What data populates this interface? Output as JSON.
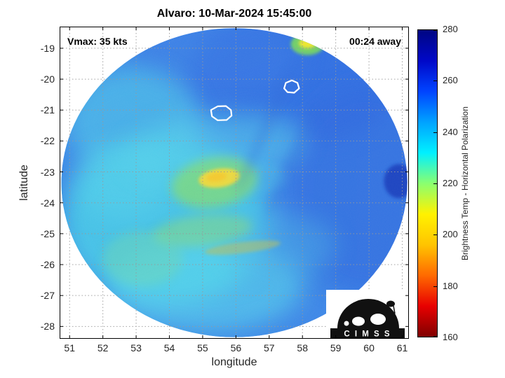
{
  "title": "Alvaro: 10-Mar-2024 15:45:00",
  "annotations": {
    "vmax": "Vmax: 35 kts",
    "time_away": "00:24 away"
  },
  "logo": {
    "text": "C I M S S"
  },
  "chart_data": {
    "type": "heatmap",
    "title": "Alvaro: 10-Mar-2024 15:45:00",
    "storm_name": "Alvaro",
    "valid_time": "10-Mar-2024 15:45:00",
    "vmax_kts": 35,
    "time_away_hhmm": "00:24",
    "xlabel": "longitude",
    "ylabel": "latitude",
    "xlim": [
      50.7,
      61.2
    ],
    "ylim": [
      -28.4,
      -18.3
    ],
    "xticks": [
      51,
      52,
      53,
      54,
      55,
      56,
      57,
      58,
      59,
      60,
      61
    ],
    "yticks": [
      -19,
      -20,
      -21,
      -22,
      -23,
      -24,
      -25,
      -26,
      -27,
      -28
    ],
    "grid": true,
    "colorbar": {
      "label": "Brightness Temp - Horizontal Polarization",
      "range": [
        160,
        280
      ],
      "ticks": [
        160,
        180,
        200,
        220,
        240,
        260,
        280
      ],
      "colors_bottom_to_top": [
        "#7f0000",
        "#e80000",
        "#ff6a00",
        "#ffc400",
        "#fff200",
        "#8aff70",
        "#00f0ff",
        "#00a2ff",
        "#0044ff",
        "#0008c8",
        "#000682"
      ]
    },
    "swath": {
      "center_lon": 55.95,
      "center_lat": -23.35,
      "rx_deg": 5.2,
      "ry_deg": 5.0,
      "base_color": "#3c86e6",
      "base_value_k": 252
    },
    "features": [
      {
        "lon": 57.8,
        "lat": -19.9,
        "rx": 3.2,
        "ry": 2.2,
        "rot": 0,
        "color": "#2e6ae0",
        "opacity": 0.8,
        "blur": "lg"
      },
      {
        "lon": 59.9,
        "lat": -23.6,
        "rx": 2.4,
        "ry": 3.4,
        "rot": 0,
        "color": "#2d68de",
        "opacity": 0.65,
        "blur": "lg"
      },
      {
        "lon": 55.4,
        "lat": -19.3,
        "rx": 2.6,
        "ry": 1.4,
        "rot": 0,
        "color": "#3a7ce4",
        "opacity": 0.5,
        "blur": "lg"
      },
      {
        "lon": 53.9,
        "lat": -24.6,
        "rx": 3.1,
        "ry": 2.7,
        "rot": 0,
        "color": "#47cce6",
        "opacity": 0.85,
        "blur": "lg"
      },
      {
        "lon": 52.9,
        "lat": -21.4,
        "rx": 2.0,
        "ry": 1.8,
        "rot": 0,
        "color": "#50cae8",
        "opacity": 0.6,
        "blur": "lg"
      },
      {
        "lon": 52.6,
        "lat": -23.3,
        "rx": 1.5,
        "ry": 1.2,
        "rot": 0,
        "color": "#54d2ea",
        "opacity": 0.5,
        "blur": "lg"
      },
      {
        "lon": 55.4,
        "lat": -22.2,
        "rx": 2.7,
        "ry": 1.1,
        "rot": -6,
        "color": "#56d0ea",
        "opacity": 0.5,
        "blur": "lg"
      },
      {
        "lon": 55.1,
        "lat": -26.7,
        "rx": 2.9,
        "ry": 1.5,
        "rot": 0,
        "color": "#59d6ec",
        "opacity": 0.6,
        "blur": "lg"
      },
      {
        "lon": 57.3,
        "lat": -25.4,
        "rx": 1.7,
        "ry": 1.1,
        "rot": 0,
        "color": "#49b0e4",
        "opacity": 0.45,
        "blur": "lg"
      },
      {
        "lon": 56.6,
        "lat": -23.2,
        "rx": 0.9,
        "ry": 0.55,
        "rot": 0,
        "color": "#4cc0e6",
        "opacity": 0.45,
        "blur": "md"
      },
      {
        "lon": 55.35,
        "lat": -23.35,
        "rx": 1.3,
        "ry": 0.8,
        "rot": -10,
        "color": "#84dc6c",
        "opacity": 0.7,
        "blur": "md"
      },
      {
        "lon": 55.5,
        "lat": -23.2,
        "rx": 0.62,
        "ry": 0.3,
        "rot": -8,
        "color": "#f0d83a",
        "opacity": 0.95,
        "blur": "sm"
      },
      {
        "lon": 55.42,
        "lat": -23.17,
        "rx": 0.3,
        "ry": 0.14,
        "rot": -8,
        "color": "#f5c62a",
        "opacity": 0.85,
        "blur": "sm"
      },
      {
        "lon": 55.0,
        "lat": -24.9,
        "rx": 1.5,
        "ry": 0.5,
        "rot": -6,
        "color": "#90dc6a",
        "opacity": 0.45,
        "blur": "md"
      },
      {
        "lon": 53.2,
        "lat": -25.8,
        "rx": 1.2,
        "ry": 0.9,
        "rot": 0,
        "color": "#6ed6ae",
        "opacity": 0.45,
        "blur": "md"
      },
      {
        "lon": 56.2,
        "lat": -25.45,
        "rx": 1.15,
        "ry": 0.18,
        "rot": -7,
        "color": "#b6be5e",
        "opacity": 0.55,
        "blur": "sm"
      },
      {
        "lon": 58.15,
        "lat": -18.87,
        "rx": 0.5,
        "ry": 0.35,
        "rot": 0,
        "color": "#7cdf52",
        "opacity": 0.85,
        "blur": "sm"
      },
      {
        "lon": 58.15,
        "lat": -18.84,
        "rx": 0.26,
        "ry": 0.16,
        "rot": 0,
        "color": "#f2e62c",
        "opacity": 0.95,
        "blur": "sm"
      },
      {
        "lon": 56.9,
        "lat": -21.6,
        "rx": 0.14,
        "ry": 2.3,
        "rot": 24,
        "color": "#2e66d6",
        "opacity": 0.3,
        "blur": "md"
      },
      {
        "lon": 57.7,
        "lat": -22.6,
        "rx": 0.12,
        "ry": 2.1,
        "rot": 24,
        "color": "#2e66d6",
        "opacity": 0.28,
        "blur": "md"
      },
      {
        "lon": 60.9,
        "lat": -23.3,
        "rx": 0.45,
        "ry": 0.55,
        "rot": 0,
        "color": "#1238b8",
        "opacity": 0.8,
        "blur": "sm"
      }
    ],
    "contours_white": [
      {
        "points": [
          [
            55.25,
            -21.0
          ],
          [
            55.45,
            -20.88
          ],
          [
            55.7,
            -20.87
          ],
          [
            55.85,
            -21.0
          ],
          [
            55.87,
            -21.18
          ],
          [
            55.72,
            -21.32
          ],
          [
            55.45,
            -21.33
          ],
          [
            55.28,
            -21.2
          ]
        ]
      },
      {
        "points": [
          [
            57.45,
            -20.3
          ],
          [
            57.5,
            -20.12
          ],
          [
            57.68,
            -20.04
          ],
          [
            57.85,
            -20.12
          ],
          [
            57.9,
            -20.3
          ],
          [
            57.75,
            -20.44
          ],
          [
            57.55,
            -20.42
          ]
        ]
      }
    ]
  }
}
